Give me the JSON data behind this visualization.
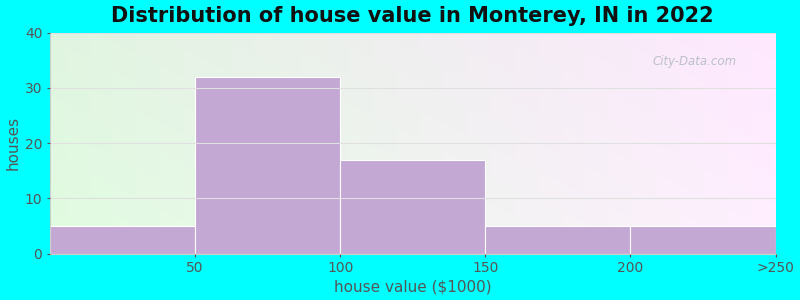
{
  "title": "Distribution of house value in Monterey, IN in 2022",
  "xlabel": "house value ($1000)",
  "ylabel": "houses",
  "bin_edges": [
    0,
    1,
    2,
    3,
    4,
    5
  ],
  "tick_positions": [
    1,
    2,
    3,
    4,
    5
  ],
  "tick_labels": [
    "50",
    "100",
    "150",
    "200",
    ">250"
  ],
  "values": [
    5,
    32,
    17,
    5,
    5
  ],
  "bar_color": "#C4A8D4",
  "bar_edgecolor": "#ffffff",
  "ylim": [
    0,
    40
  ],
  "yticks": [
    0,
    10,
    20,
    30,
    40
  ],
  "bg_outer": "#00FFFF",
  "bg_color_topleft": "#e8f5e0",
  "bg_color_topright": "#f5f8f0",
  "bg_color_bottomleft": "#f0f8ea",
  "bg_color_bottomright": "#ffffff",
  "watermark": "City-Data.com",
  "title_fontsize": 15,
  "axis_label_fontsize": 11,
  "tick_fontsize": 10,
  "grid_color": "#e0e0e0",
  "spine_color": "#cccccc",
  "text_color": "#555555"
}
